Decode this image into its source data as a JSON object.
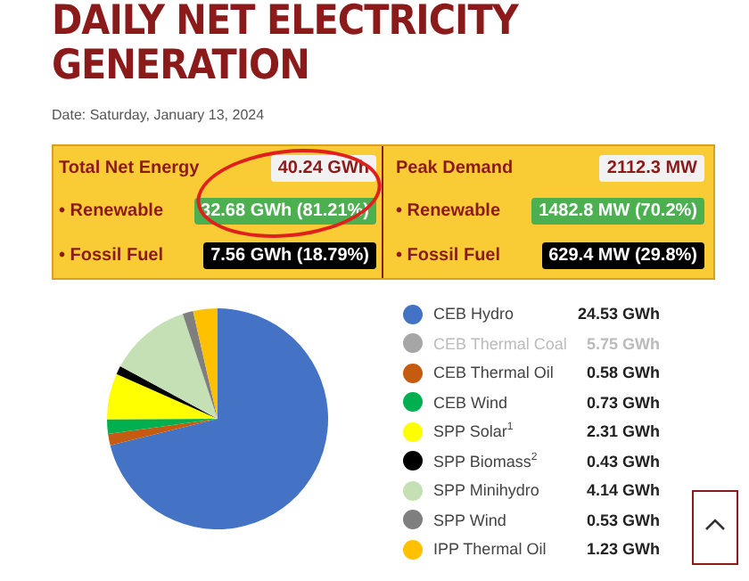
{
  "chart_data": {
    "type": "pie",
    "title": "DAILY NET ELECTRICITY GENERATION",
    "subtitle": "Date: Saturday, January 13, 2024",
    "annotations": [
      "Total Net Energy",
      "40.24 GWh",
      "Peak Demand",
      "2112.3 MW",
      "• Renewable",
      "32.68 GWh (81.21%)",
      "• Renewable",
      "1482.8 MW (70.2%)",
      "• Fossil Fuel",
      "7.56 GWh (18.79%)",
      "• Fossil Fuel",
      "629.4 MW (29.8%)"
    ],
    "categories": [
      "CEB Hydro",
      "CEB Thermal Coal",
      "CEB Thermal Oil",
      "CEB Wind",
      "SPP Solar$^{1}$",
      "SPP Biomass$^{2}$",
      "SPP Minihydro",
      "SPP Wind",
      "IPP Thermal Oil"
    ],
    "values": [
      24.53,
      null,
      0.58,
      0.73,
      2.31,
      0.43,
      4.14,
      0.53,
      1.23
    ],
    "value_labels": [
      "24.53 GWh",
      "5.75 GWh",
      "0.58 GWh",
      "0.73 GWh",
      "2.31 GWh",
      "0.43 GWh",
      "4.14 GWh",
      "0.53 GWh",
      "1.23 GWh"
    ],
    "colors": [
      "#4472c4",
      "#a6a6a6",
      "#c55a11",
      "#00b050",
      "#ffff00",
      "#000000",
      "#c5e0b4",
      "#7f7f7f",
      "#ffc000"
    ],
    "legend": "right"
  }
}
